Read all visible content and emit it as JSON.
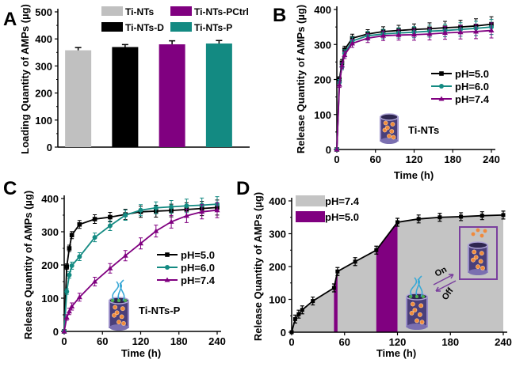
{
  "colors": {
    "gray": "#c0c0c0",
    "black": "#000000",
    "purple": "#800080",
    "teal": "#138a82",
    "fill_gray": "#c4c4c4"
  },
  "chart_data": [
    {
      "panel": "A",
      "type": "bar",
      "ylabel": "Loading Quantity of AMPs (µg)",
      "ylim": [
        0,
        500
      ],
      "yticks": [
        0,
        100,
        200,
        300,
        400,
        500
      ],
      "categories": [
        "Ti-NTs",
        "Ti-NTs-D",
        "Ti-NTs-PCtrl",
        "Ti-NTs-P"
      ],
      "values": [
        358,
        370,
        380,
        383
      ],
      "errors": [
        10,
        9,
        13,
        11
      ],
      "bar_colors": [
        "#c0c0c0",
        "#000000",
        "#800080",
        "#138a82"
      ],
      "legend": "top"
    },
    {
      "panel": "B",
      "type": "line",
      "xlabel": "Time (h)",
      "ylabel": "Release Quantity of AMPs (µg)",
      "xlim": [
        0,
        240
      ],
      "ylim": [
        0,
        400
      ],
      "xticks": [
        0,
        60,
        120,
        180,
        240
      ],
      "yticks": [
        0,
        100,
        200,
        300,
        400
      ],
      "annotation": "Ti-NTs",
      "legend": "right",
      "x": [
        0,
        4,
        8,
        12,
        24,
        48,
        72,
        96,
        120,
        144,
        168,
        192,
        216,
        240
      ],
      "series": [
        {
          "name": "pH=5.0",
          "marker": "square",
          "color": "#000000",
          "values": [
            0,
            200,
            248,
            285,
            318,
            330,
            337,
            340,
            343,
            345,
            348,
            350,
            353,
            358
          ]
        },
        {
          "name": "pH=6.0",
          "marker": "circle",
          "color": "#138a82",
          "values": [
            0,
            192,
            237,
            275,
            310,
            325,
            330,
            333,
            335,
            338,
            340,
            343,
            346,
            350
          ]
        },
        {
          "name": "pH=7.4",
          "marker": "triangle",
          "color": "#800080",
          "values": [
            0,
            185,
            240,
            270,
            303,
            318,
            325,
            327,
            328,
            330,
            333,
            335,
            337,
            340
          ]
        }
      ]
    },
    {
      "panel": "C",
      "type": "line",
      "xlabel": "Time (h)",
      "ylabel": "Release Quantity of AMPs (µg)",
      "xlim": [
        0,
        240
      ],
      "ylim": [
        0,
        400
      ],
      "xticks": [
        0,
        60,
        120,
        180,
        240
      ],
      "yticks": [
        0,
        100,
        200,
        300,
        400
      ],
      "annotation": "Ti-NTs-P",
      "legend": "right",
      "x": [
        0,
        4,
        8,
        12,
        24,
        48,
        72,
        96,
        120,
        144,
        168,
        192,
        216,
        240
      ],
      "series": [
        {
          "name": "pH=5.0",
          "marker": "square",
          "color": "#000000",
          "values": [
            0,
            195,
            250,
            290,
            322,
            338,
            344,
            352,
            360,
            362,
            364,
            367,
            370,
            373
          ]
        },
        {
          "name": "pH=6.0",
          "marker": "circle",
          "color": "#138a82",
          "values": [
            0,
            120,
            170,
            198,
            225,
            283,
            318,
            350,
            365,
            372,
            375,
            378,
            380,
            383
          ]
        },
        {
          "name": "pH=7.4",
          "marker": "triangle",
          "color": "#800080",
          "values": [
            0,
            42,
            60,
            75,
            103,
            150,
            190,
            228,
            265,
            302,
            330,
            348,
            360,
            365
          ]
        }
      ]
    },
    {
      "panel": "D",
      "type": "area",
      "xlabel": "Time (h)",
      "ylabel": "Release Quantity of AMPs (µg)",
      "xlim": [
        0,
        240
      ],
      "ylim": [
        0,
        400
      ],
      "xticks": [
        0,
        60,
        120,
        180,
        240
      ],
      "yticks": [
        0,
        100,
        200,
        300,
        400
      ],
      "legend": "top-left",
      "regions": [
        {
          "name": "pH=7.4",
          "color": "#c4c4c4"
        },
        {
          "name": "pH=5.0",
          "color": "#800080",
          "intervals": [
            [
              48,
              52
            ],
            [
              96,
              120
            ]
          ]
        }
      ],
      "annotations": [
        "On",
        "Off"
      ],
      "x": [
        0,
        4,
        8,
        12,
        24,
        48,
        52,
        72,
        96,
        120,
        144,
        168,
        192,
        216,
        240
      ],
      "values": [
        0,
        40,
        55,
        68,
        95,
        135,
        185,
        215,
        250,
        335,
        345,
        350,
        352,
        355,
        357
      ]
    }
  ]
}
